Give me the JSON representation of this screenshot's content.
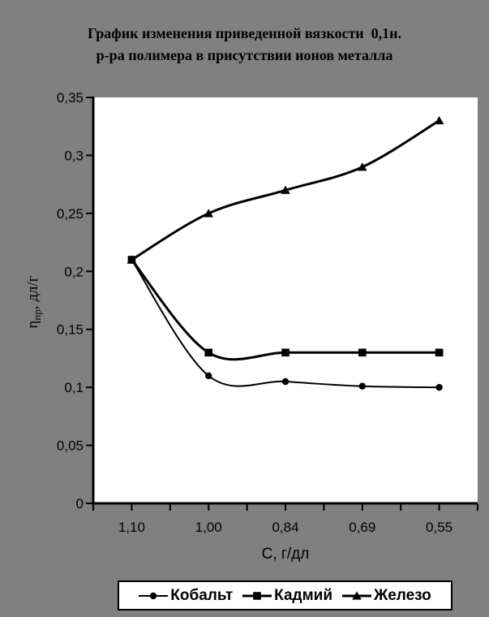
{
  "page": {
    "background_color": "#808080",
    "plot_background_color": "#ffffff",
    "ink_color": "#000000"
  },
  "title": {
    "line1": "График изменения приведенной вязкости  0,1н.",
    "line2": "р-ра полимера в присутствии ионов металла"
  },
  "chart_data": {
    "type": "line",
    "title": "График изменения приведенной вязкости 0,1н. р-ра полимера в присутствии ионов металла",
    "categories": [
      "1,10",
      "1,00",
      "0,84",
      "0,69",
      "0,55"
    ],
    "series": [
      {
        "name": "Кобальт",
        "marker": "circle",
        "line_width": 2,
        "values": [
          0.21,
          0.11,
          0.105,
          0.101,
          0.1
        ]
      },
      {
        "name": "Кадмий",
        "marker": "square",
        "line_width": 3,
        "values": [
          0.21,
          0.13,
          0.13,
          0.13,
          0.13
        ]
      },
      {
        "name": "Железо",
        "marker": "triangle",
        "line_width": 3,
        "values": [
          0.21,
          0.25,
          0.27,
          0.29,
          0.33
        ]
      }
    ],
    "xlabel": "С, г/дл",
    "ylabel": {
      "prefix": "η",
      "sub": "пр",
      "suffix": ", дл/г"
    },
    "ylim": [
      0,
      0.35
    ],
    "ytick_step": 0.05,
    "ytick_labels": [
      "0",
      "0,05",
      "0,1",
      "0,15",
      "0,2",
      "0,25",
      "0,3",
      "0,35"
    ],
    "grid": false,
    "smoothed_lines": true,
    "legend_position": "bottom",
    "series_color": "#000000"
  }
}
